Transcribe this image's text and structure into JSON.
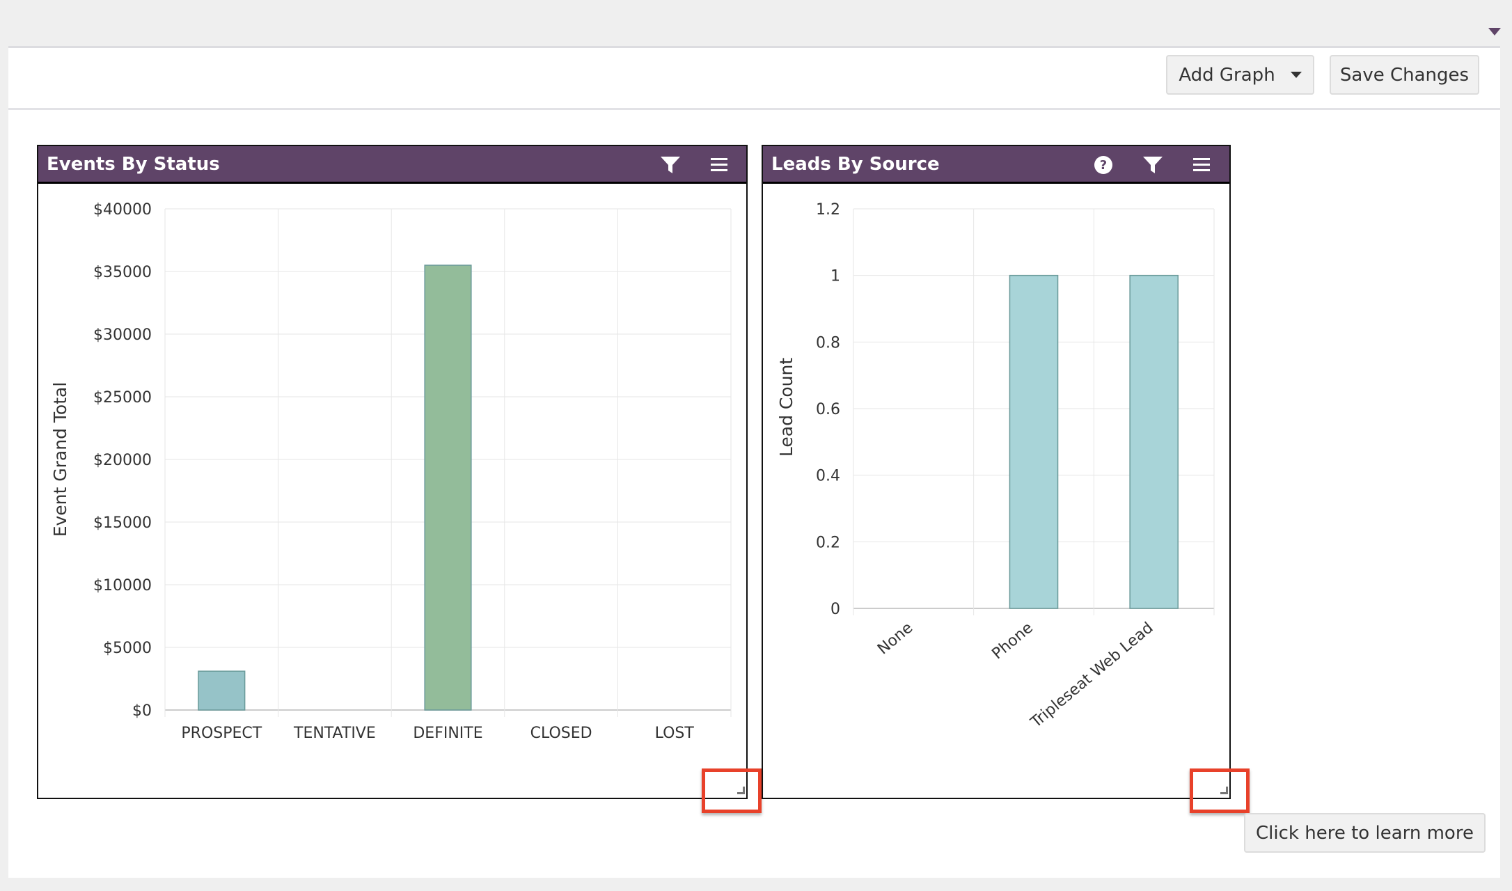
{
  "toolbar": {
    "add_graph_label": "Add Graph",
    "save_changes_label": "Save Changes"
  },
  "learn_more_label": "Click here to learn more",
  "colors": {
    "header": "#5f4468",
    "bar_teal": "#96c3c8",
    "bar_green": "#93bc9a",
    "bar_teal2": "#a8d4d8",
    "highlight": "#e8412a"
  },
  "panels": [
    {
      "title": "Events By Status",
      "icons": [
        "filter-icon",
        "menu-icon"
      ]
    },
    {
      "title": "Leads By Source",
      "icons": [
        "help-icon",
        "filter-icon",
        "menu-icon"
      ]
    }
  ],
  "chart_data": [
    {
      "type": "bar",
      "title": "Events By Status",
      "xlabel": "",
      "ylabel": "Event Grand Total",
      "categories": [
        "PROSPECT",
        "TENTATIVE",
        "DEFINITE",
        "CLOSED",
        "LOST"
      ],
      "values": [
        3100,
        0,
        35500,
        0,
        0
      ],
      "bar_colors": [
        "#96c3c8",
        null,
        "#93bc9a",
        null,
        null
      ],
      "ylim": [
        0,
        40000
      ],
      "yticks": [
        0,
        5000,
        10000,
        15000,
        20000,
        25000,
        30000,
        35000,
        40000
      ],
      "ytick_labels": [
        "$0",
        "$5000",
        "$10000",
        "$15000",
        "$20000",
        "$25000",
        "$30000",
        "$35000",
        "$40000"
      ],
      "grid": true
    },
    {
      "type": "bar",
      "title": "Leads By Source",
      "xlabel": "",
      "ylabel": "Lead Count",
      "categories": [
        "None",
        "Phone",
        "Tripleseat Web Lead"
      ],
      "values": [
        0,
        1,
        1
      ],
      "bar_colors": [
        "#a8d4d8",
        "#a8d4d8",
        "#a8d4d8"
      ],
      "ylim": [
        0,
        1.2
      ],
      "yticks": [
        0,
        0.2,
        0.4,
        0.6,
        0.8,
        1,
        1.2
      ],
      "ytick_labels": [
        "0",
        "0.2",
        "0.4",
        "0.6",
        "0.8",
        "1",
        "1.2"
      ],
      "grid": true
    }
  ]
}
